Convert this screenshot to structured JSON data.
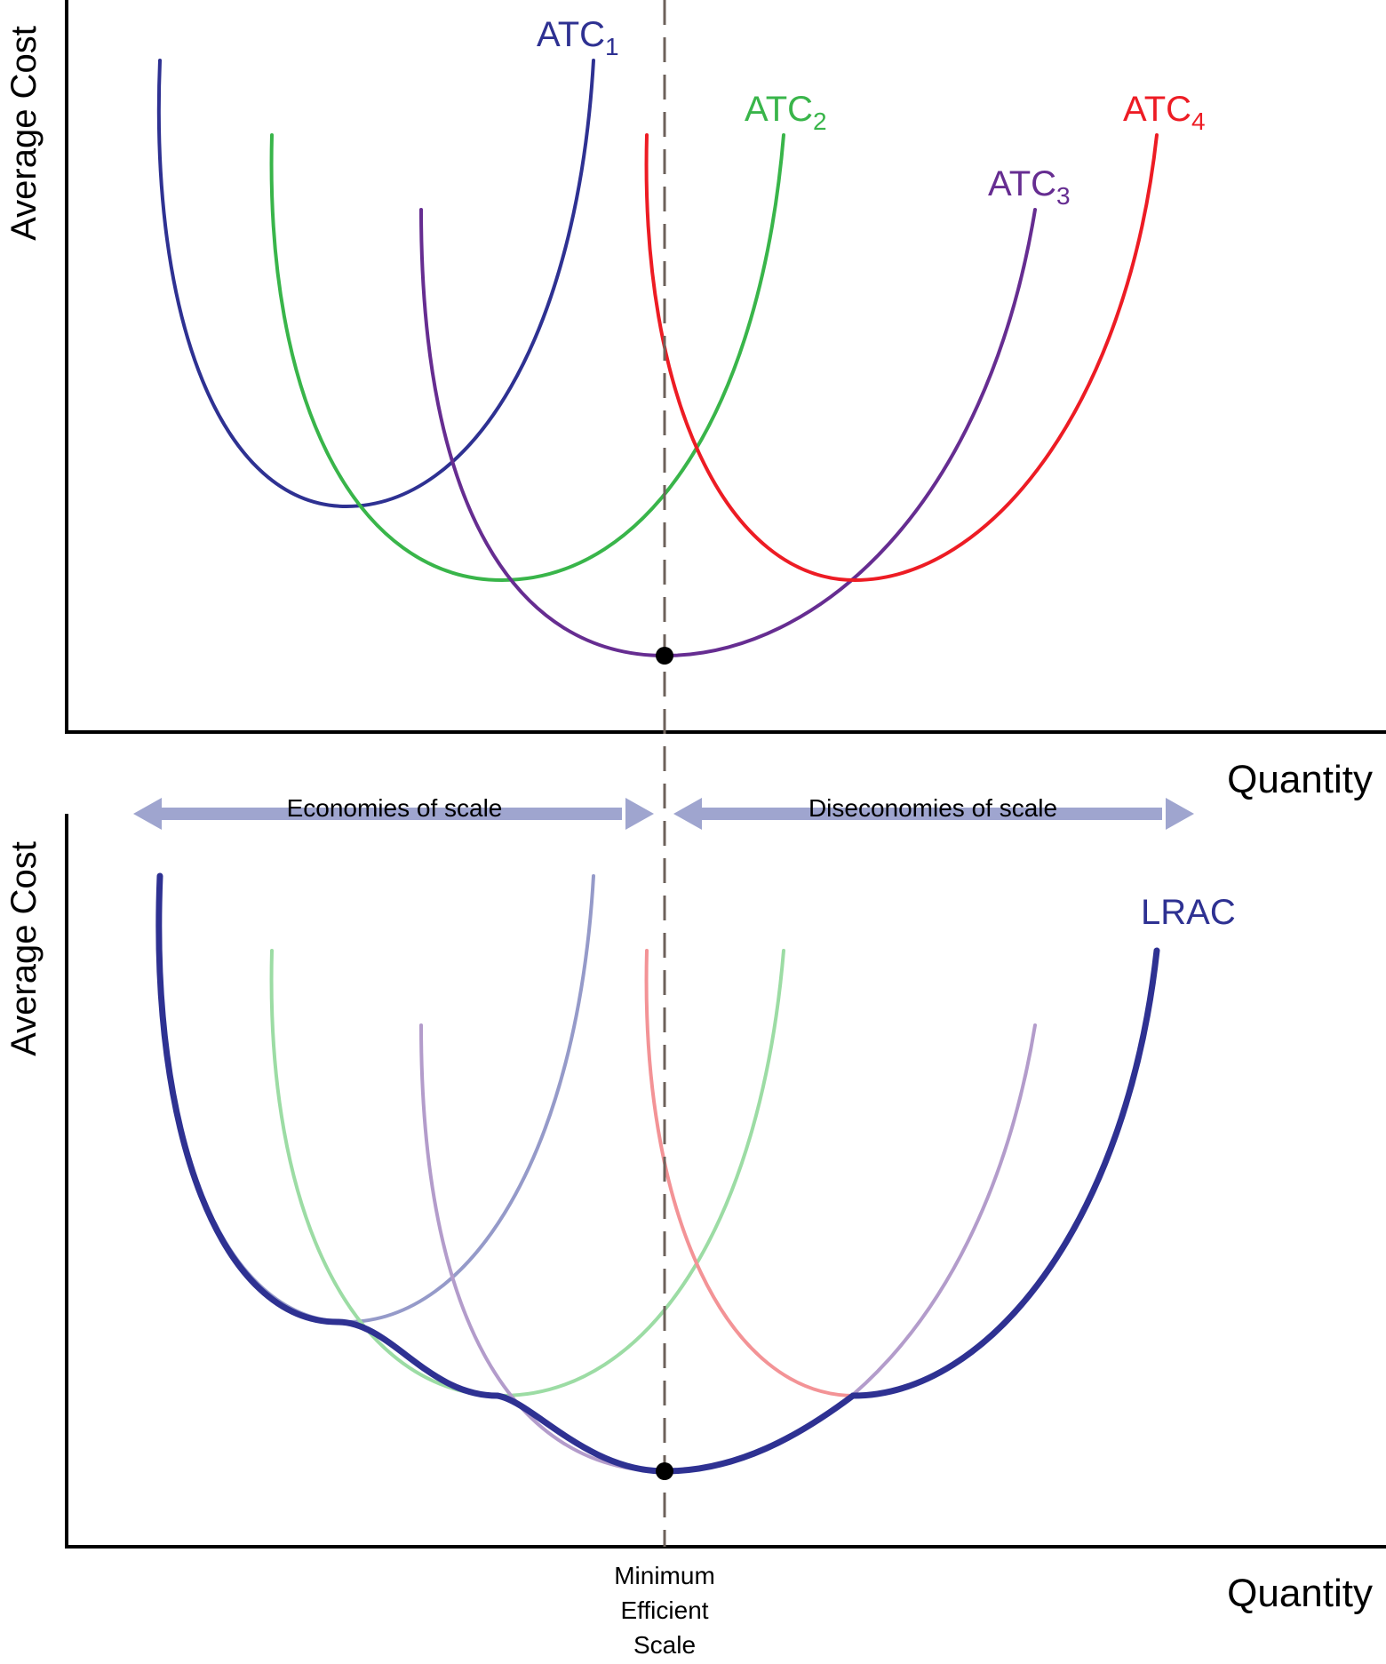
{
  "top_panel": {
    "y_axis_label": "Average Cost",
    "x_axis_label": "Quantity",
    "curves": [
      {
        "base": "ATC",
        "sub": "1",
        "color": "#2e3192"
      },
      {
        "base": "ATC",
        "sub": "2",
        "color": "#39b54a"
      },
      {
        "base": "ATC",
        "sub": "3",
        "color": "#662d91"
      },
      {
        "base": "ATC",
        "sub": "4",
        "color": "#ed1c24"
      }
    ],
    "minimum_point_color": "#000000"
  },
  "scale_arrows": {
    "left_label": "Economies of scale",
    "right_label": "Diseconomies of scale",
    "color": "#9fa5cf"
  },
  "bottom_panel": {
    "y_axis_label": "Average Cost",
    "x_axis_label": "Quantity",
    "lrac_label": "LRAC",
    "lrac_color": "#2e3192",
    "faded_colors": [
      "#959ac9",
      "#9cdca4",
      "#b39ccb",
      "#f39396"
    ],
    "min_efficient_scale_lines": [
      "Minimum",
      "Efficient",
      "Scale"
    ]
  },
  "divider_color": "#6d625b"
}
